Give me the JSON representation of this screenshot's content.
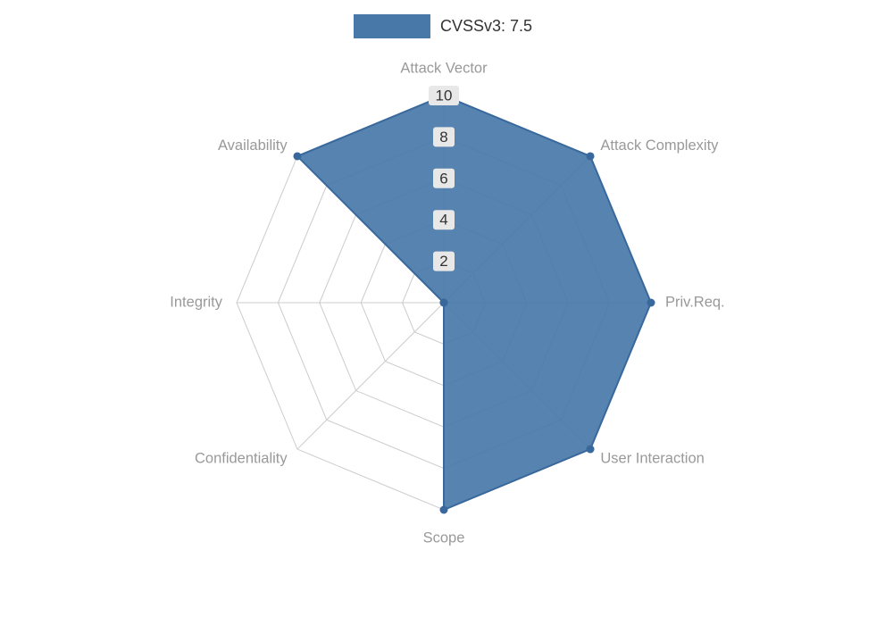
{
  "legend": {
    "label": "CVSSv3: 7.5"
  },
  "chart_data": {
    "type": "radar",
    "title": "CVSSv3: 7.5",
    "categories": [
      "Attack Vector",
      "Attack Complexity",
      "Priv.Req.",
      "User Interaction",
      "Scope",
      "Confidentiality",
      "Integrity",
      "Availability"
    ],
    "series": [
      {
        "name": "CVSSv3: 7.5",
        "values": [
          10,
          10,
          10,
          10,
          10,
          0,
          0,
          10
        ]
      }
    ],
    "rlim": [
      0,
      10
    ],
    "tick_values": [
      2,
      4,
      6,
      8,
      10
    ],
    "tick_labels": [
      "2",
      "4",
      "6",
      "8",
      "10"
    ],
    "grid": true,
    "legend_position": "top-center",
    "colors": {
      "series_fill": "#4878a8",
      "series_stroke": "#39689c",
      "grid_line": "#cccccc",
      "axis_name": "#999999",
      "tick_text": "#333333",
      "tick_bg": "#e8e8e8",
      "legend_text": "#333333"
    }
  }
}
